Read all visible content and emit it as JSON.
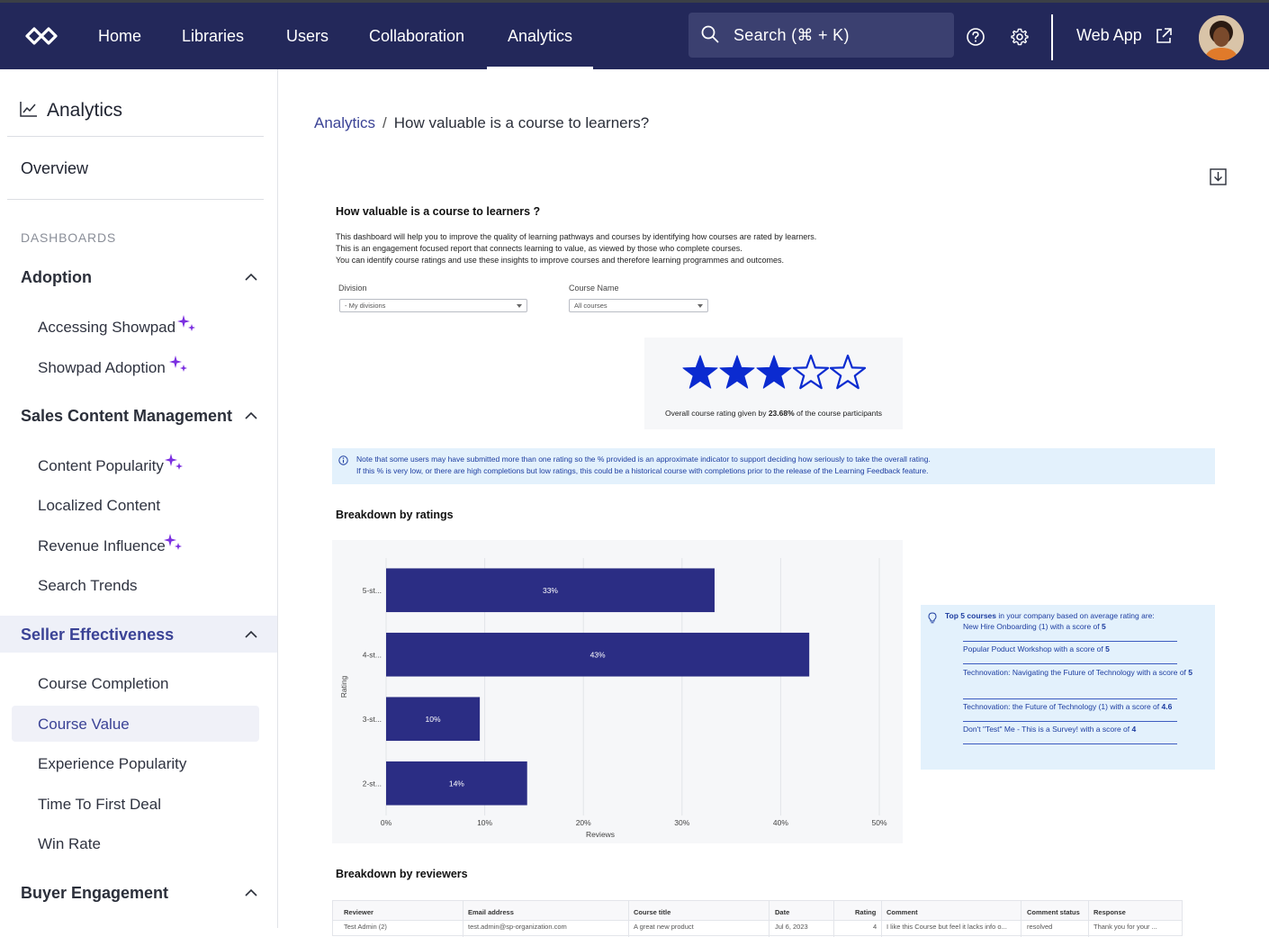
{
  "topnav": {
    "items": [
      {
        "label": "Home"
      },
      {
        "label": "Libraries"
      },
      {
        "label": "Users"
      },
      {
        "label": "Collaboration"
      },
      {
        "label": "Analytics",
        "active": true
      }
    ],
    "search_label": "Search (⌘ + K)",
    "webapp_label": "Web App",
    "bg_color": "#23285a"
  },
  "sidebar": {
    "title": "Analytics",
    "overview": "Overview",
    "section_label": "DASHBOARDS",
    "groups": [
      {
        "label": "Adoption",
        "items": [
          {
            "label": "Accessing Showpad",
            "new": true
          },
          {
            "label": "Showpad Adoption",
            "new": true
          }
        ]
      },
      {
        "label": "Sales Content Management",
        "items": [
          {
            "label": "Content Popularity",
            "new": true
          },
          {
            "label": "Localized Content"
          },
          {
            "label": "Revenue Influence",
            "new": true
          },
          {
            "label": "Search Trends"
          }
        ]
      },
      {
        "label": "Seller Effectiveness",
        "active": true,
        "items": [
          {
            "label": "Course Completion"
          },
          {
            "label": "Course Value",
            "active": true
          },
          {
            "label": "Experience Popularity"
          },
          {
            "label": "Time To First Deal"
          },
          {
            "label": "Win Rate"
          }
        ]
      },
      {
        "label": "Buyer Engagement"
      }
    ]
  },
  "breadcrumb": {
    "parent": "Analytics",
    "separator": "/",
    "current": "How valuable is a course to learners?"
  },
  "dashboard": {
    "title": "How valuable is a course to learners ?",
    "description": [
      "This dashboard will help you to improve the quality of learning pathways and courses by identifying how courses are rated by learners.",
      "This is an engagement focused report that connects learning to value, as viewed by those who complete courses.",
      "You can identify course ratings and use these insights to improve courses and therefore learning programmes and outcomes."
    ],
    "filters": {
      "division_label": "Division",
      "division_value": "- My divisions",
      "course_label": "Course Name",
      "course_value": "All courses"
    },
    "rating": {
      "stars_filled": 3,
      "stars_total": 5,
      "caption_prefix": "Overall course rating given by ",
      "caption_percent": "23.68%",
      "caption_suffix": " of the course participants"
    },
    "note": [
      "Note that some users may have submitted more than one rating so the % provided is an approximate indicator to support deciding how seriously to take the overall rating.",
      "If this % is very low, or there are high completions but low ratings, this could be a historical course with completions prior to the release of the Learning Feedback feature."
    ],
    "breakdown_title": "Breakdown by ratings",
    "reviewers_title": "Breakdown by reviewers",
    "top5": {
      "head_bold": "Top 5 courses",
      "head_rest": " in your company based on average rating are:",
      "items": [
        {
          "text": "New Hire Onboarding (1) with a score of ",
          "score": "5"
        },
        {
          "text": "Popular Poduct Workshop with a score of ",
          "score": "5"
        },
        {
          "text": "Technovation: Navigating the Future of Technology with a score of ",
          "score": "5"
        },
        {
          "text": "Technovation: the Future of Technology (1) with a score of ",
          "score": "4.6"
        },
        {
          "text": "Don't \"Test\" Me - This is a Survey! with a score of ",
          "score": "4"
        }
      ]
    },
    "table": {
      "headers": [
        "Reviewer",
        "Email address",
        "Course title",
        "Date",
        "Rating",
        "Comment",
        "Comment status",
        "Response"
      ],
      "rows": [
        [
          "Test Admin (2)",
          "test.admin@sp-organization.com",
          "A great new product",
          "Jul 6, 2023",
          "4",
          "I like this Course but feel it lacks info o...",
          "resolved",
          "Thank you for your ..."
        ]
      ]
    }
  },
  "chart_data": {
    "type": "bar",
    "orientation": "horizontal",
    "categories": [
      "5-st...",
      "4-st...",
      "3-st...",
      "2-st..."
    ],
    "values": [
      33.3,
      42.9,
      9.5,
      14.3
    ],
    "data_labels": [
      "33%",
      "43%",
      "10%",
      "14%"
    ],
    "xlabel": "Reviews",
    "ylabel": "Rating",
    "xlim": [
      0,
      50
    ],
    "xticks": [
      "0%",
      "10%",
      "20%",
      "30%",
      "40%",
      "50%"
    ],
    "bar_color": "#2b2d84",
    "grid": true
  }
}
